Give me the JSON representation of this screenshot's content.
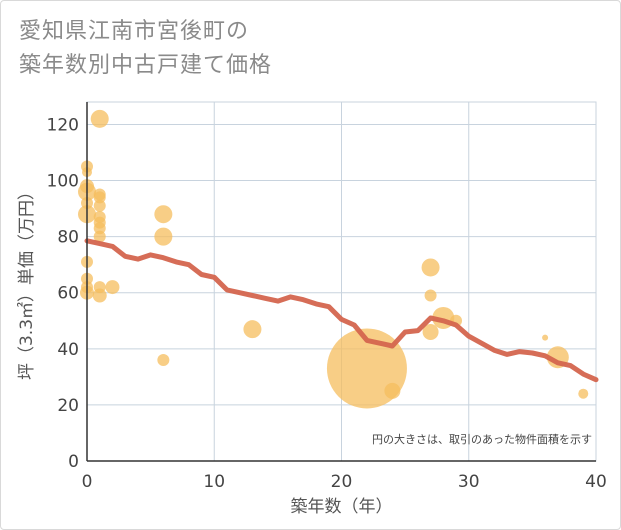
{
  "title_lines": [
    "愛知県江南市宮後町の",
    "築年数別中古戸建て価格"
  ],
  "colors": {
    "bubble": "#f5bd5e",
    "line": "#d4654e",
    "grid": "#c8d3de",
    "axis": "#333333"
  },
  "chart_data": {
    "type": "scatter",
    "title": "愛知県江南市宮後町の築年数別中古戸建て価格",
    "xlabel": "築年数（年）",
    "ylabel": "坪（3.3㎡）単価（万円）",
    "xlim": [
      0,
      40
    ],
    "ylim": [
      0,
      128
    ],
    "xticks": [
      "0",
      "10",
      "20",
      "30",
      "40"
    ],
    "yticks": [
      "0",
      "20",
      "40",
      "60",
      "80",
      "100",
      "120"
    ],
    "xtick_values": [
      0,
      10,
      20,
      30,
      40
    ],
    "ytick_values": [
      0,
      20,
      40,
      60,
      80,
      100,
      120
    ],
    "note": "円の大きさは、取引のあった物件面積を示す",
    "bubbles": [
      {
        "x": 0,
        "y": 105,
        "size": 6
      },
      {
        "x": 0,
        "y": 103,
        "size": 5
      },
      {
        "x": 0,
        "y": 98,
        "size": 7
      },
      {
        "x": 0,
        "y": 96,
        "size": 9
      },
      {
        "x": 0,
        "y": 92,
        "size": 6
      },
      {
        "x": 0,
        "y": 88,
        "size": 9
      },
      {
        "x": 0,
        "y": 71,
        "size": 6
      },
      {
        "x": 0,
        "y": 65,
        "size": 6
      },
      {
        "x": 0,
        "y": 62,
        "size": 6
      },
      {
        "x": 0,
        "y": 60,
        "size": 7
      },
      {
        "x": 1,
        "y": 122,
        "size": 9
      },
      {
        "x": 1,
        "y": 95,
        "size": 6
      },
      {
        "x": 1,
        "y": 94,
        "size": 6
      },
      {
        "x": 1,
        "y": 91,
        "size": 6
      },
      {
        "x": 1,
        "y": 87,
        "size": 6
      },
      {
        "x": 1,
        "y": 85,
        "size": 6
      },
      {
        "x": 1,
        "y": 83,
        "size": 6
      },
      {
        "x": 1,
        "y": 80,
        "size": 6
      },
      {
        "x": 1,
        "y": 62,
        "size": 6
      },
      {
        "x": 1,
        "y": 59,
        "size": 7
      },
      {
        "x": 2,
        "y": 62,
        "size": 7
      },
      {
        "x": 6,
        "y": 88,
        "size": 9
      },
      {
        "x": 6,
        "y": 80,
        "size": 9
      },
      {
        "x": 6,
        "y": 36,
        "size": 6
      },
      {
        "x": 13,
        "y": 47,
        "size": 9
      },
      {
        "x": 22,
        "y": 33,
        "size": 40
      },
      {
        "x": 24,
        "y": 25,
        "size": 8
      },
      {
        "x": 27,
        "y": 69,
        "size": 9
      },
      {
        "x": 27,
        "y": 59,
        "size": 6
      },
      {
        "x": 27,
        "y": 46,
        "size": 8
      },
      {
        "x": 28,
        "y": 51,
        "size": 11
      },
      {
        "x": 29,
        "y": 50,
        "size": 6
      },
      {
        "x": 36,
        "y": 44,
        "size": 3
      },
      {
        "x": 37,
        "y": 37,
        "size": 11
      },
      {
        "x": 39,
        "y": 24,
        "size": 5
      }
    ],
    "trend_line": {
      "x": [
        0,
        1,
        2,
        3,
        4,
        5,
        6,
        7,
        8,
        9,
        10,
        11,
        12,
        13,
        14,
        15,
        16,
        17,
        18,
        19,
        20,
        21,
        22,
        23,
        24,
        25,
        26,
        27,
        28,
        29,
        30,
        31,
        32,
        33,
        34,
        35,
        36,
        37,
        38,
        39,
        40
      ],
      "y": [
        78.5,
        77.5,
        76.5,
        73,
        72,
        73.5,
        72.5,
        71,
        70,
        66.5,
        65.5,
        61,
        60,
        59,
        58,
        57,
        58.5,
        57.5,
        56,
        55,
        50.5,
        48.5,
        43,
        42,
        41,
        46,
        46.5,
        51,
        50,
        48.5,
        44.5,
        42,
        39.5,
        38,
        39,
        38.5,
        37.5,
        35,
        34,
        31,
        29
      ]
    }
  }
}
